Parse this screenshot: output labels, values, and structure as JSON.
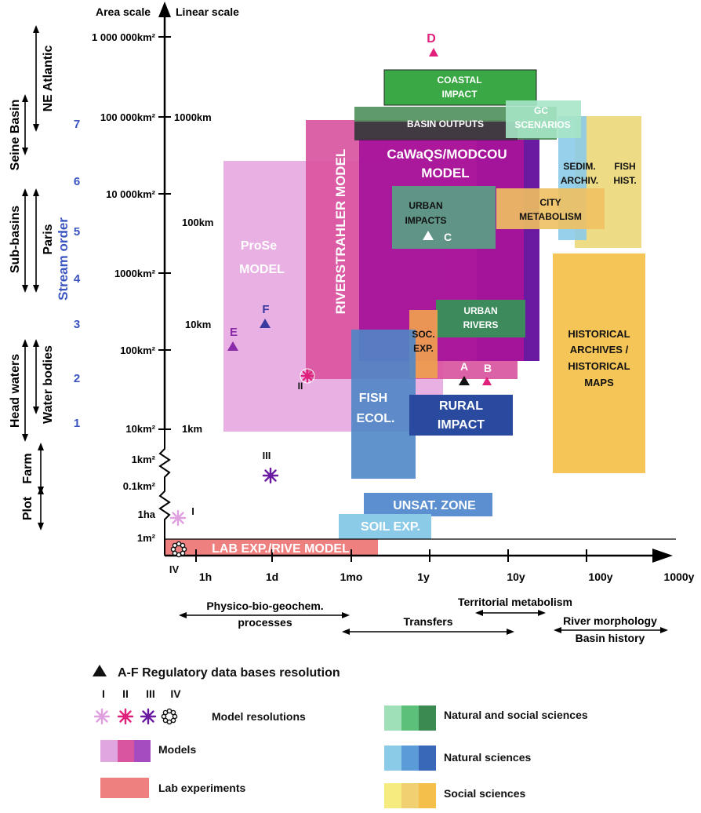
{
  "axes": {
    "area_scale_title": "Area scale",
    "linear_scale_title": "Linear scale",
    "area_ticks": [
      "1 000 000km²",
      "100 000km²",
      "10 000km²",
      "1000km²",
      "100km²",
      "10km²",
      "1km²",
      "0.1km²",
      "1ha",
      "1m²"
    ],
    "linear_ticks": [
      "1000km",
      "100km",
      "10km",
      "1km"
    ],
    "time_ticks": [
      "1h",
      "1d",
      "1mo",
      "1y",
      "10y",
      "100y",
      "1000y"
    ],
    "stream_order_title": "Stream order",
    "stream_order_ticks": [
      "1",
      "2",
      "3",
      "4",
      "5",
      "6",
      "7"
    ]
  },
  "spatial_domains": {
    "ne_atlantic": "NE Atlantic",
    "seine_basin": "Seine Basin",
    "paris": "Paris",
    "sub_basins": "Sub-basins",
    "water_bodies": "Water bodies",
    "head_waters": "Head waters",
    "farm": "Farm",
    "plot": "Plot"
  },
  "boxes": {
    "coastal_impact": [
      "COASTAL",
      "IMPACT"
    ],
    "basin_outputs": "BASIN OUTPUTS",
    "gc_scenarios": [
      "GC",
      "SCENARIOS"
    ],
    "cawaqs": [
      "CaWaQS/MODCOU",
      "MODEL"
    ],
    "riverstrahler": "RIVERSTRAHLER MODEL",
    "prose": [
      "ProSe",
      "MODEL"
    ],
    "urban_impacts": [
      "URBAN",
      "IMPACTS"
    ],
    "city_metabolism": [
      "CITY",
      "METABOLISM"
    ],
    "sedim_archiv": [
      "SEDIM.",
      "ARCHIV."
    ],
    "fish_hist": [
      "FISH",
      "HIST."
    ],
    "urban_rivers": [
      "URBAN",
      "RIVERS"
    ],
    "soc_exp": [
      "SOC.",
      "EXP."
    ],
    "historical_archives": [
      "HISTORICAL",
      "ARCHIVES /",
      "HISTORICAL",
      "MAPS"
    ],
    "fish_ecol": [
      "FISH",
      "ECOL."
    ],
    "rural_impact": [
      "RURAL",
      "IMPACT"
    ],
    "unsat_zone": "UNSAT. ZONE",
    "soil_exp": "SOIL EXP.",
    "lab_exp": "LAB EXP./RIVE MODEL"
  },
  "markers": {
    "A": "A",
    "B": "B",
    "C": "C",
    "D": "D",
    "E": "E",
    "F": "F",
    "I": "I",
    "II": "II",
    "III": "III",
    "IV": "IV"
  },
  "processes": {
    "physico": [
      "Physico-bio-geochem.",
      "processes"
    ],
    "territorial": "Territorial metabolism",
    "transfers": "Transfers",
    "river_morphology": "River morphology",
    "basin_history": "Basin history"
  },
  "legend": {
    "regulatory": "A-F Regulatory data bases resolution",
    "roman": [
      "I",
      "II",
      "III",
      "IV"
    ],
    "model_resolutions": "Model resolutions",
    "models": "Models",
    "lab_experiments": "Lab experiments",
    "natural_social": "Natural and social sciences",
    "natural": "Natural sciences",
    "social": "Social sciences"
  },
  "colors": {
    "coastal": "#3aa845",
    "basin_outputs": "#4e8f5a",
    "gc": "#7fd8b0",
    "cawaqs": "#a8149a",
    "cawaqs_dark": "#6a1aa0",
    "riverstrahler": "#d9559f",
    "prose": "#e6a7e0",
    "urban_impacts": "#5c9b86",
    "city_metabolism": "#f0c060",
    "sedim": "#8ccbe8",
    "fish_hist": "#ecd779",
    "urban_rivers": "#3d8a5c",
    "soc_exp": "#f0a050",
    "historical": "#f5c04a",
    "fish_ecol": "#4f86c6",
    "rural_impact": "#2a4aa0",
    "unsat": "#5b8fd0",
    "soil": "#8ccbe8",
    "lab": "#ef8080",
    "triangle_dark": "#222222",
    "triangle_pink": "#e0207a",
    "triangle_purple": "#6a1aa0",
    "triangle_indigo": "#3a3aa0",
    "star_I": "#e0a0e0",
    "star_II": "#e0207a",
    "star_III": "#6a1aa0",
    "stream_blue": "#3b55c0"
  }
}
